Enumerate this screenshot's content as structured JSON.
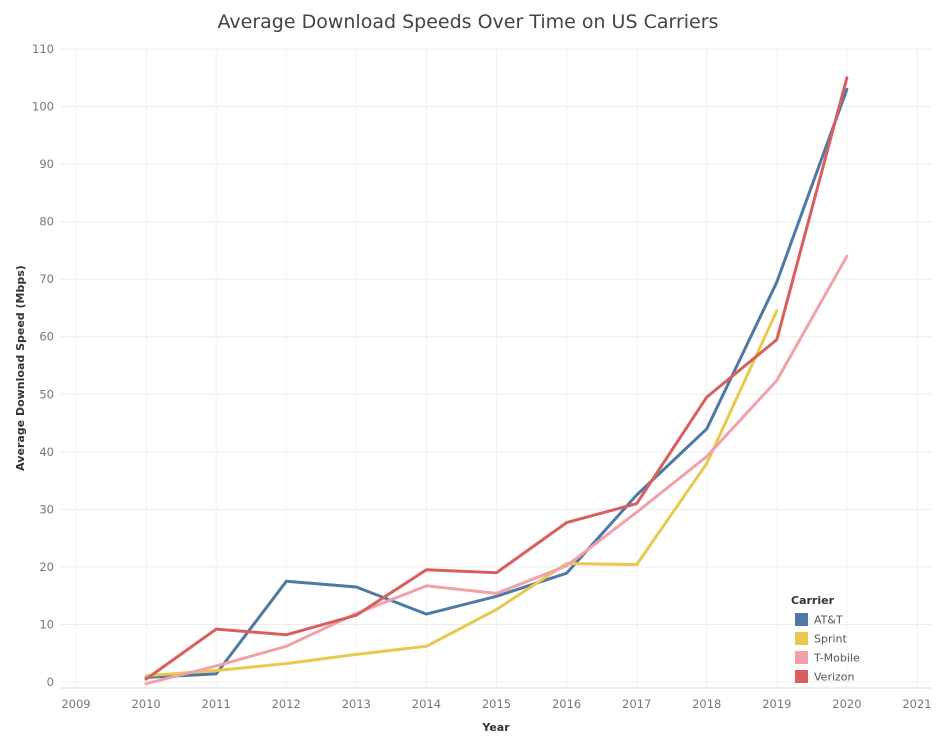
{
  "chart_data": {
    "type": "line",
    "title": "Average Download Speeds Over Time on US Carriers",
    "xlabel": "Year",
    "ylabel": "Average Download Speed (Mbps)",
    "xlim": [
      2009,
      2021
    ],
    "ylim": [
      0,
      110
    ],
    "x_ticks": [
      "2009",
      "2010",
      "2011",
      "2012",
      "2013",
      "2014",
      "2015",
      "2016",
      "2017",
      "2018",
      "2019",
      "2020",
      "2021"
    ],
    "y_ticks": [
      "0",
      "10",
      "20",
      "30",
      "40",
      "50",
      "60",
      "70",
      "80",
      "90",
      "100",
      "110"
    ],
    "grid": true,
    "legend_title": "Carrier",
    "legend_position": "bottom-right",
    "series": [
      {
        "name": "AT&T",
        "color": "#4e79a7",
        "x": [
          2010,
          2011,
          2012,
          2013,
          2014,
          2015,
          2016,
          2017,
          2018,
          2019,
          2020
        ],
        "y": [
          0.8,
          1.4,
          17.5,
          16.5,
          11.8,
          14.9,
          18.9,
          32.5,
          44.0,
          69.5,
          103.0
        ]
      },
      {
        "name": "Sprint",
        "color": "#e8c94f",
        "x": [
          2010,
          2011,
          2012,
          2013,
          2014,
          2015,
          2016,
          2017,
          2018,
          2019
        ],
        "y": [
          1.1,
          2.0,
          3.2,
          4.8,
          6.2,
          12.6,
          20.6,
          20.4,
          38.0,
          64.5
        ]
      },
      {
        "name": "T-Mobile",
        "color": "#f1a1a7",
        "x": [
          2010,
          2011,
          2012,
          2013,
          2014,
          2015,
          2016,
          2017,
          2018,
          2019,
          2020
        ],
        "y": [
          -0.3,
          2.8,
          6.2,
          11.9,
          16.7,
          15.4,
          20.2,
          29.5,
          39.2,
          52.4,
          74.0
        ]
      },
      {
        "name": "Verizon",
        "color": "#d95f5f",
        "x": [
          2010,
          2011,
          2012,
          2013,
          2014,
          2015,
          2016,
          2017,
          2018,
          2019,
          2020
        ],
        "y": [
          0.5,
          9.2,
          8.2,
          11.6,
          19.5,
          19.0,
          27.7,
          31.0,
          49.5,
          59.5,
          105.0
        ]
      }
    ]
  }
}
